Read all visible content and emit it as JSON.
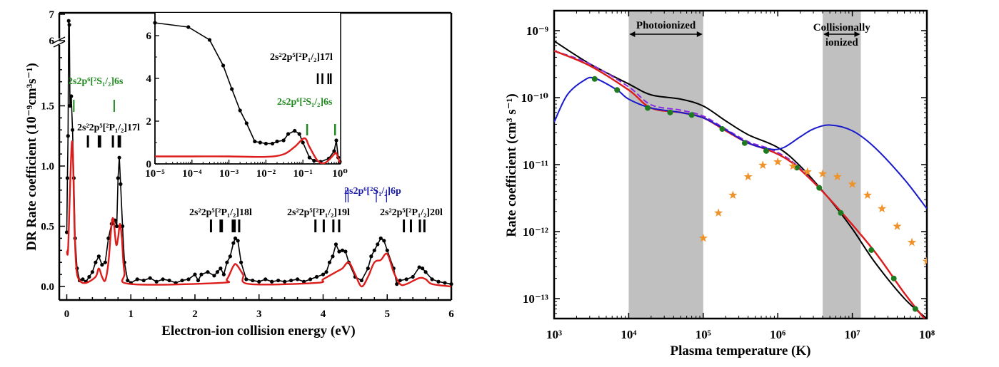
{
  "chart_data": [
    {
      "type": "line",
      "xlabel": "Electron-ion collision energy (eV)",
      "ylabel": "DR Rate coefficient (10⁻⁹cm³s⁻¹)",
      "xlim": [
        0,
        6
      ],
      "ylim": [
        0,
        7
      ],
      "axis_break": [
        2,
        6
      ],
      "x_ticks": [
        "0",
        "1",
        "2",
        "3",
        "4",
        "5",
        "6"
      ],
      "y_ticks": [
        "0.0",
        "0.5",
        "1.0",
        "1.5",
        "6",
        "7"
      ],
      "grid": false,
      "colors": {
        "experiment": "#000000",
        "theory": "#dd1c1c"
      },
      "series": [
        {
          "style": "points+line",
          "color": "#000000",
          "x": [
            0.0,
            0.01,
            0.02,
            0.03,
            0.04,
            0.05,
            0.07,
            0.09,
            0.11,
            0.13,
            0.16,
            0.2,
            0.25,
            0.3,
            0.35,
            0.4,
            0.45,
            0.5,
            0.55,
            0.6,
            0.65,
            0.7,
            0.72,
            0.75,
            0.78,
            0.8,
            0.82,
            0.84,
            0.87,
            0.9,
            0.95,
            1.0,
            1.1,
            1.2,
            1.3,
            1.4,
            1.5,
            1.6,
            1.7,
            1.8,
            1.9,
            2.0,
            2.05,
            2.1,
            2.2,
            2.3,
            2.35,
            2.4,
            2.45,
            2.5,
            2.55,
            2.6,
            2.63,
            2.67,
            2.72,
            2.8,
            2.9,
            3.0,
            3.1,
            3.2,
            3.3,
            3.4,
            3.5,
            3.6,
            3.7,
            3.8,
            3.9,
            4.0,
            4.05,
            4.1,
            4.15,
            4.2,
            4.25,
            4.3,
            4.35,
            4.4,
            4.5,
            4.6,
            4.7,
            4.75,
            4.8,
            4.85,
            4.9,
            4.95,
            5.0,
            5.1,
            5.15,
            5.2,
            5.3,
            5.4,
            5.5,
            5.55,
            5.6,
            5.7,
            5.8,
            5.9,
            6.0
          ],
          "y": [
            0.45,
            0.9,
            1.25,
            6.75,
            6.6,
            1.5,
            1.58,
            1.3,
            0.9,
            0.4,
            0.15,
            0.05,
            0.06,
            0.04,
            0.08,
            0.12,
            0.2,
            0.25,
            0.18,
            0.2,
            0.4,
            0.52,
            0.55,
            0.55,
            0.5,
            0.9,
            1.07,
            0.85,
            0.5,
            0.2,
            0.05,
            0.03,
            0.06,
            0.05,
            0.07,
            0.04,
            0.06,
            0.05,
            0.03,
            0.05,
            0.06,
            0.1,
            0.05,
            0.1,
            0.12,
            0.09,
            0.12,
            0.15,
            0.1,
            0.2,
            0.25,
            0.36,
            0.4,
            0.38,
            0.2,
            0.06,
            0.05,
            0.04,
            0.06,
            0.04,
            0.05,
            0.04,
            0.05,
            0.06,
            0.04,
            0.06,
            0.08,
            0.1,
            0.12,
            0.2,
            0.25,
            0.35,
            0.29,
            0.3,
            0.29,
            0.2,
            0.08,
            0.05,
            0.15,
            0.25,
            0.3,
            0.35,
            0.4,
            0.38,
            0.3,
            0.15,
            0.02,
            0.05,
            0.06,
            0.08,
            0.16,
            0.15,
            0.12,
            0.06,
            0.04,
            0.03,
            0.02
          ]
        },
        {
          "style": "line",
          "color": "#dd1c1c",
          "x": [
            0.0,
            0.02,
            0.05,
            0.08,
            0.1,
            0.12,
            0.15,
            0.2,
            0.3,
            0.45,
            0.5,
            0.55,
            0.6,
            0.65,
            0.7,
            0.73,
            0.77,
            0.8,
            0.83,
            0.86,
            0.9,
            1.0,
            2.4,
            2.5,
            2.6,
            2.65,
            2.75,
            2.85,
            3.9,
            4.0,
            4.2,
            4.3,
            4.4,
            4.5,
            4.6,
            4.7,
            4.8,
            4.9,
            5.0,
            5.1,
            5.2,
            5.3,
            5.5,
            5.6,
            5.7,
            6.0
          ],
          "y": [
            0.3,
            0.3,
            0.8,
            1.2,
            1.0,
            0.5,
            0.15,
            0.05,
            0.03,
            0.08,
            0.15,
            0.08,
            0.05,
            0.2,
            0.52,
            0.55,
            0.35,
            0.4,
            0.52,
            0.4,
            0.12,
            0.02,
            0.03,
            0.06,
            0.17,
            0.18,
            0.1,
            0.02,
            0.03,
            0.06,
            0.12,
            0.15,
            0.2,
            0.1,
            0.0,
            0.08,
            0.2,
            0.22,
            0.27,
            0.12,
            0.02,
            0.02,
            0.07,
            0.06,
            0.02,
            0.0
          ]
        }
      ],
      "annotations": [
        {
          "text": "2s2p⁶[²S₁/₂]6s",
          "color": "#1e8a1e",
          "markers": [
            0.11,
            0.74
          ]
        },
        {
          "text": "2s²2p⁵[²P₁/₂]17l",
          "color": "#000000",
          "markers": [
            0.33,
            0.5,
            0.52,
            0.72,
            0.81,
            0.83
          ]
        },
        {
          "text": "2s²2p⁵[²P₁/₂]18l",
          "color": "#000000",
          "markers": [
            2.25,
            2.4,
            2.42,
            2.59,
            2.62,
            2.69
          ]
        },
        {
          "text": "2s²2p⁵[²P₁/₂]19l",
          "color": "#000000",
          "markers": [
            3.88,
            4.01,
            4.16,
            4.25
          ]
        },
        {
          "text": "2s²2p⁵[²P₁/₂]20l",
          "color": "#000000",
          "markers": [
            5.26,
            5.37,
            5.51,
            5.58
          ]
        },
        {
          "text": "2s2p⁶[²S₁/₂]6p",
          "color": "#1a1aaa",
          "markers": [
            4.35,
            4.39,
            4.83,
            4.99
          ]
        }
      ],
      "inset": {
        "xscale": "log",
        "xlim": [
          1e-05,
          1
        ],
        "ylim": [
          0,
          7
        ],
        "x_ticks": [
          "10⁻⁵",
          "10⁻⁴",
          "10⁻³",
          "10⁻²",
          "10⁻¹",
          "10⁰"
        ],
        "y_ticks": [
          "0",
          "2",
          "4",
          "6"
        ],
        "series": [
          {
            "style": "points+line",
            "color": "#000000",
            "x": [
              1e-05,
              8e-05,
              0.0003,
              0.0007,
              0.0012,
              0.002,
              0.003,
              0.005,
              0.007,
              0.01,
              0.015,
              0.02,
              0.03,
              0.04,
              0.06,
              0.08,
              0.1,
              0.15,
              0.2,
              0.3,
              0.5,
              0.7,
              0.8,
              0.9,
              1.0
            ],
            "y": [
              6.6,
              6.4,
              5.8,
              4.6,
              3.5,
              2.5,
              1.9,
              1.05,
              1.0,
              0.95,
              0.95,
              1.05,
              1.1,
              1.4,
              1.55,
              1.4,
              1.0,
              0.3,
              0.15,
              0.1,
              0.25,
              0.6,
              1.1,
              0.3,
              0.1
            ]
          },
          {
            "style": "line",
            "color": "#dd1c1c",
            "x": [
              1e-05,
              0.0001,
              0.001,
              0.01,
              0.03,
              0.06,
              0.11,
              0.15,
              0.25,
              0.4,
              0.7,
              0.8,
              1.0
            ],
            "y": [
              0.35,
              0.35,
              0.35,
              0.33,
              0.45,
              0.8,
              1.2,
              0.8,
              0.15,
              0.05,
              0.45,
              0.5,
              0.05
            ]
          }
        ],
        "annotations": [
          {
            "text": "2s²2p⁵[²P₁/₂]17l",
            "color": "#000000",
            "markers": [
              0.33,
              0.5,
              0.72,
              0.81
            ]
          },
          {
            "text": "2s2p⁶[²S₁/₂]6s",
            "color": "#1e8a1e",
            "markers": [
              0.13,
              0.74
            ]
          }
        ]
      }
    },
    {
      "type": "line",
      "xlabel": "Plasma temperature (K)",
      "ylabel": "Rate coefficient (cm³ s⁻¹)",
      "xscale": "log",
      "yscale": "log",
      "xlim": [
        1000,
        100000000
      ],
      "ylim": [
        5e-14,
        2e-09
      ],
      "x_ticks": [
        "10³",
        "10⁴",
        "10⁵",
        "10⁶",
        "10⁷",
        "10⁸"
      ],
      "y_ticks": [
        "10⁻⁹",
        "10⁻¹⁰",
        "10⁻¹¹",
        "10⁻¹²",
        "10⁻¹³"
      ],
      "grid": false,
      "shaded_regions": [
        {
          "label": "Photoionized",
          "range": [
            10000,
            100000
          ]
        },
        {
          "label": "Collisionally ionized",
          "label_lines": [
            "Collisionally",
            "ionized"
          ],
          "range": [
            4000000,
            13000000
          ]
        }
      ],
      "shade_color": "#c0c0c0",
      "series": [
        {
          "style": "line",
          "color": "#000000",
          "x": [
            1000,
            3000,
            10000,
            20000,
            50000,
            100000,
            200000,
            400000,
            1000000,
            2000000,
            5000000,
            10000000,
            20000000,
            50000000,
            100000000
          ],
          "y": [
            7e-10,
            3.2e-10,
            1.6e-10,
            1.1e-10,
            9.5e-11,
            7.5e-11,
            4.5e-11,
            2.8e-11,
            1.8e-11,
            9.5e-12,
            3e-12,
            1.1e-12,
            3.5e-13,
            1e-13,
            5e-14
          ]
        },
        {
          "style": "dashed",
          "color": "#8a2be2",
          "x": [
            1000,
            3000,
            10000,
            20000,
            50000,
            100000,
            200000,
            400000,
            800000,
            1500000,
            3000000,
            7000000,
            20000000,
            50000000,
            100000000
          ],
          "y": [
            5e-10,
            3.2e-10,
            1.45e-10,
            7.8e-11,
            6.5e-11,
            5.3e-11,
            3.4e-11,
            2.2e-11,
            1.7e-11,
            1.15e-11,
            5.6e-12,
            2e-12,
            5e-13,
            1.2e-13,
            4.5e-14
          ]
        },
        {
          "style": "line",
          "color": "#dd1c1c",
          "x": [
            1000,
            3000,
            10000,
            20000,
            50000,
            100000,
            200000,
            400000,
            800000,
            1500000,
            3000000,
            7000000,
            20000000,
            50000000,
            100000000
          ],
          "y": [
            5e-10,
            3e-10,
            1.3e-10,
            7e-11,
            6e-11,
            5e-11,
            3.2e-11,
            2.1e-11,
            1.6e-11,
            1.1e-11,
            5.5e-12,
            2e-12,
            5e-13,
            1.2e-13,
            4.5e-14
          ]
        },
        {
          "style": "line",
          "color": "#1a1acc",
          "x": [
            1000,
            1500,
            2500,
            3500,
            7000,
            10000,
            20000,
            50000,
            100000,
            200000,
            400000,
            800000,
            1200000,
            2000000,
            3000000,
            5000000,
            10000000,
            20000000,
            50000000,
            100000000
          ],
          "y": [
            4.3e-11,
            1.1e-10,
            1.8e-10,
            1.95e-10,
            1.3e-10,
            9.5e-11,
            7e-11,
            6e-11,
            5e-11,
            3.3e-11,
            2.1e-11,
            1.7e-11,
            1.8e-11,
            2.6e-11,
            3.4e-11,
            3.9e-11,
            3.2e-11,
            1.8e-11,
            6e-12,
            2.2e-12
          ]
        },
        {
          "style": "markers-circle",
          "color": "#1e7a1e",
          "x": [
            3500,
            7000,
            18000,
            36000,
            70000,
            180000,
            360000,
            700000,
            1800000,
            3600000,
            7000000,
            18000000,
            36000000,
            70000000
          ],
          "y": [
            1.9e-10,
            1.3e-10,
            7e-11,
            6e-11,
            5.5e-11,
            3.4e-11,
            2.1e-11,
            1.6e-11,
            9e-12,
            4.5e-12,
            1.9e-12,
            5.3e-13,
            2e-13,
            7e-14
          ]
        },
        {
          "style": "markers-star",
          "color": "#f0922a",
          "x": [
            100000,
            160000,
            250000,
            400000,
            630000,
            1000000,
            1600000,
            2500000,
            4000000,
            6300000,
            10000000,
            16000000,
            25000000,
            40000000,
            63000000,
            100000000
          ],
          "y": [
            8e-13,
            1.9e-12,
            3.5e-12,
            6.6e-12,
            9.8e-12,
            1.1e-11,
            9.5e-12,
            7.8e-12,
            7.3e-12,
            6.6e-12,
            5.1e-12,
            3.5e-12,
            2.2e-12,
            1.2e-12,
            6.9e-13,
            3.6e-13
          ]
        }
      ]
    }
  ]
}
